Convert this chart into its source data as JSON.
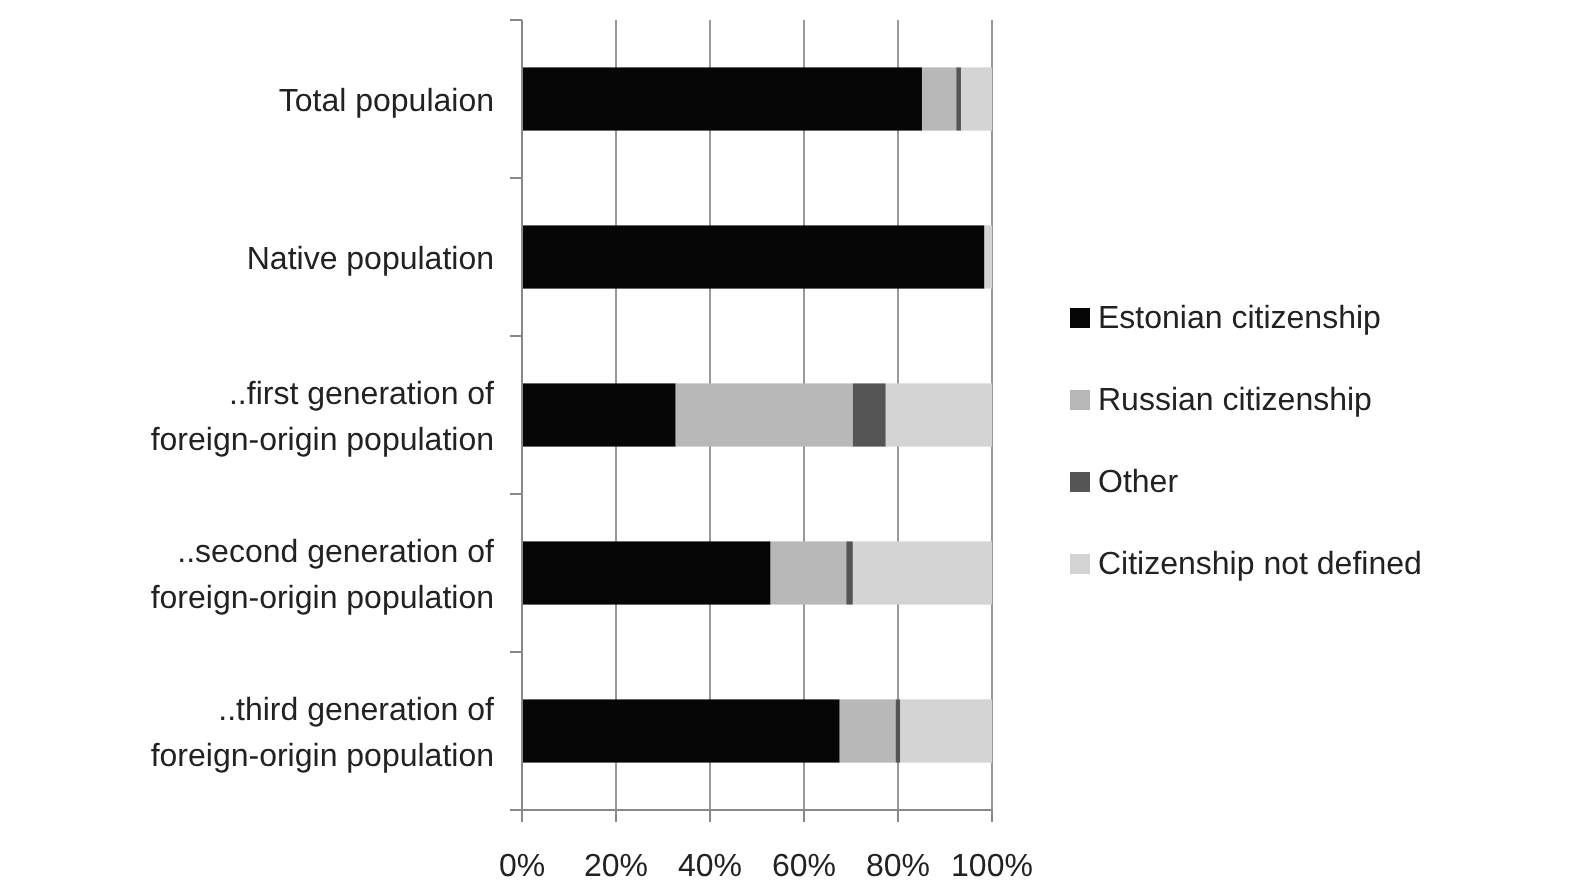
{
  "chart_data": {
    "type": "bar",
    "orientation": "horizontal",
    "stacked": true,
    "categories": [
      "Total populaion",
      "Native population",
      "..first generation of foreign-origin population",
      "..second generation of foreign-origin population",
      "..third generation of foreign-origin population"
    ],
    "series": [
      {
        "name": "Estonian citizenship",
        "color": "#060606",
        "values": [
          85.1,
          98.4,
          32.7,
          52.9,
          67.6
        ]
      },
      {
        "name": "Russian citizenship",
        "color": "#b8b8b8",
        "values": [
          7.3,
          null,
          37.7,
          16.1,
          11.9
        ]
      },
      {
        "name": "Other",
        "color": "#555555",
        "values": [
          1.0,
          null,
          7.0,
          1.4,
          1.0
        ]
      },
      {
        "name": "Citizenship not defined",
        "color": "#d4d4d4",
        "values": [
          6.6,
          1.6,
          22.6,
          29.6,
          19.5
        ]
      }
    ],
    "xlim": [
      0,
      100
    ],
    "xticks": [
      {
        "value": 0,
        "label": "0%"
      },
      {
        "value": 20,
        "label": "20%"
      },
      {
        "value": 40,
        "label": "40%"
      },
      {
        "value": 60,
        "label": "60%"
      },
      {
        "value": 80,
        "label": "80%"
      },
      {
        "value": 100,
        "label": "100%"
      }
    ],
    "grid": "x",
    "legend": "right"
  }
}
